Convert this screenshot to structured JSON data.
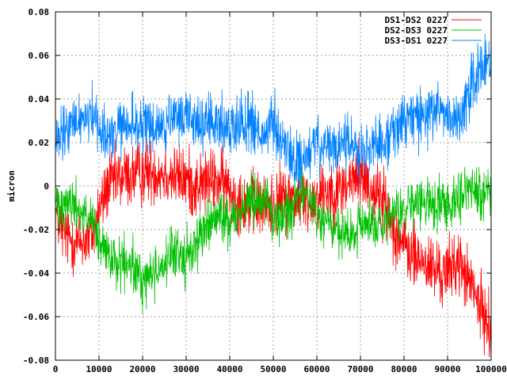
{
  "chart_data": {
    "type": "line",
    "title": "",
    "xlabel": "",
    "ylabel": "micron",
    "xlim": [
      0,
      100000
    ],
    "ylim": [
      -0.08,
      0.08
    ],
    "x_ticks": [
      0,
      10000,
      20000,
      30000,
      40000,
      50000,
      60000,
      70000,
      80000,
      90000,
      100000
    ],
    "x_tick_labels": [
      "0",
      "10000",
      "20000",
      "30000",
      "40000",
      "50000",
      "60000",
      "70000",
      "80000",
      "90000",
      "100000"
    ],
    "y_ticks": [
      -0.08,
      -0.06,
      -0.04,
      -0.02,
      0,
      0.02,
      0.04,
      0.06,
      0.08
    ],
    "y_tick_labels": [
      "-0.08",
      "-0.06",
      "-0.04",
      "-0.02",
      "0",
      "0.02",
      "0.04",
      "0.06",
      "0.08"
    ],
    "grid": true,
    "legend_position": "top-right",
    "series": [
      {
        "name": "DS1-DS2 0227",
        "color": "#ff0000",
        "noise": 0.0075,
        "x": [
          0,
          2000,
          5000,
          8000,
          10000,
          12000,
          15000,
          18000,
          20000,
          22000,
          25000,
          28000,
          30000,
          32000,
          35000,
          38000,
          40000,
          42000,
          45000,
          48000,
          50000,
          52000,
          55000,
          58000,
          60000,
          62000,
          65000,
          68000,
          70000,
          72000,
          75000,
          78000,
          80000,
          82000,
          85000,
          88000,
          90000,
          92000,
          95000,
          98000,
          100000
        ],
        "y": [
          -0.012,
          -0.022,
          -0.026,
          -0.024,
          -0.012,
          0.0,
          0.004,
          0.005,
          0.006,
          0.007,
          0.006,
          0.004,
          0.003,
          0.0,
          0.002,
          0.002,
          -0.002,
          -0.006,
          -0.008,
          -0.01,
          -0.008,
          -0.006,
          -0.005,
          -0.008,
          -0.004,
          -0.002,
          -0.002,
          0.002,
          0.006,
          0.0,
          -0.006,
          -0.02,
          -0.028,
          -0.032,
          -0.036,
          -0.04,
          -0.04,
          -0.034,
          -0.044,
          -0.058,
          -0.066
        ]
      },
      {
        "name": "DS2-DS3 0227",
        "color": "#00c000",
        "noise": 0.006,
        "x": [
          0,
          2000,
          5000,
          8000,
          10000,
          12000,
          15000,
          18000,
          20000,
          22000,
          25000,
          28000,
          30000,
          32000,
          35000,
          38000,
          40000,
          42000,
          45000,
          48000,
          50000,
          52000,
          55000,
          58000,
          60000,
          62000,
          65000,
          68000,
          70000,
          72000,
          75000,
          78000,
          80000,
          82000,
          85000,
          88000,
          90000,
          92000,
          95000,
          98000,
          100000
        ],
        "y": [
          -0.008,
          -0.006,
          -0.01,
          -0.016,
          -0.026,
          -0.033,
          -0.036,
          -0.038,
          -0.044,
          -0.04,
          -0.036,
          -0.03,
          -0.034,
          -0.026,
          -0.018,
          -0.014,
          -0.016,
          -0.012,
          -0.006,
          -0.004,
          -0.016,
          -0.014,
          -0.008,
          -0.002,
          -0.014,
          -0.016,
          -0.022,
          -0.024,
          -0.018,
          -0.016,
          -0.02,
          -0.014,
          -0.01,
          -0.008,
          -0.008,
          -0.008,
          -0.008,
          -0.004,
          -0.002,
          -0.004,
          0.0
        ]
      },
      {
        "name": "DS3-DS1 0227",
        "color": "#0080ff",
        "noise": 0.0065,
        "x": [
          0,
          2000,
          5000,
          8000,
          10000,
          12000,
          15000,
          18000,
          20000,
          22000,
          25000,
          28000,
          30000,
          32000,
          35000,
          38000,
          40000,
          42000,
          45000,
          48000,
          50000,
          52000,
          55000,
          58000,
          60000,
          62000,
          65000,
          68000,
          70000,
          72000,
          75000,
          78000,
          80000,
          82000,
          85000,
          88000,
          90000,
          92000,
          95000,
          98000,
          100000
        ],
        "y": [
          0.018,
          0.024,
          0.03,
          0.034,
          0.028,
          0.022,
          0.026,
          0.028,
          0.028,
          0.026,
          0.028,
          0.03,
          0.034,
          0.03,
          0.028,
          0.028,
          0.026,
          0.03,
          0.03,
          0.02,
          0.03,
          0.02,
          0.01,
          0.014,
          0.02,
          0.016,
          0.018,
          0.02,
          0.016,
          0.018,
          0.02,
          0.026,
          0.03,
          0.032,
          0.032,
          0.036,
          0.032,
          0.03,
          0.044,
          0.054,
          0.058
        ]
      }
    ]
  }
}
